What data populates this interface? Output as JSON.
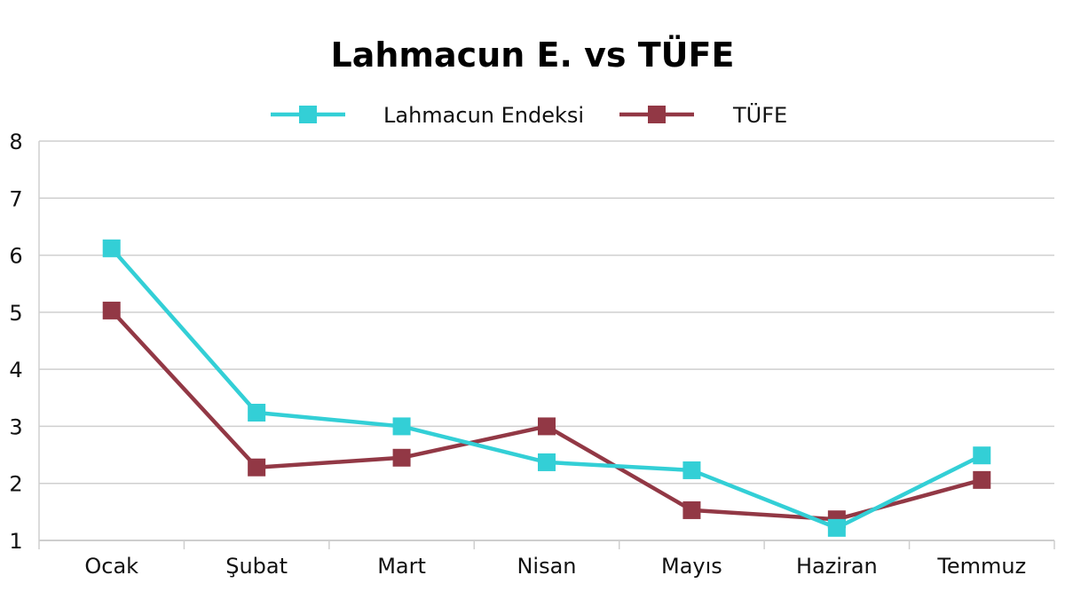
{
  "chart_data": {
    "type": "line",
    "title": "Lahmacun E. vs TÜFE",
    "xlabel": "",
    "ylabel": "",
    "categories": [
      "Ocak",
      "Şubat",
      "Mart",
      "Nisan",
      "Mayıs",
      "Haziran",
      "Temmuz"
    ],
    "series": [
      {
        "name": "Lahmacun Endeksi",
        "color": "#33cfd6",
        "marker": "square",
        "values": [
          6.12,
          3.24,
          3.0,
          2.37,
          2.23,
          1.22,
          2.49
        ]
      },
      {
        "name": "TÜFE",
        "color": "#923845",
        "marker": "square",
        "values": [
          5.03,
          2.28,
          2.45,
          3.0,
          1.53,
          1.37,
          2.06
        ]
      }
    ],
    "ylim": [
      1,
      8
    ],
    "yticks": [
      1,
      2,
      3,
      4,
      5,
      6,
      7,
      8
    ],
    "grid": true,
    "legend_position": "top"
  }
}
